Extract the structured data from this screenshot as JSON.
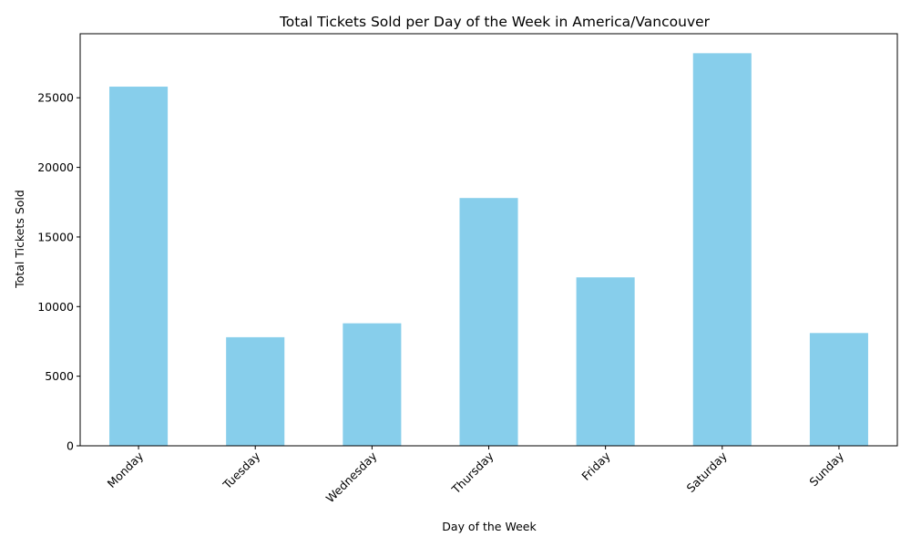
{
  "chart_data": {
    "type": "bar",
    "title": "Total Tickets Sold per Day of the Week in America/Vancouver",
    "xlabel": "Day of the Week",
    "ylabel": "Total Tickets Sold",
    "categories": [
      "Monday",
      "Tuesday",
      "Wednesday",
      "Thursday",
      "Friday",
      "Saturday",
      "Sunday"
    ],
    "values": [
      25800,
      7800,
      8800,
      17800,
      12100,
      28200,
      8100
    ],
    "ylim": [
      0,
      29600
    ],
    "yticks": [
      0,
      5000,
      10000,
      15000,
      20000,
      25000
    ],
    "grid": false,
    "legend": "none",
    "bar_color": "#87ceeb",
    "x_tick_rotation": 45
  }
}
